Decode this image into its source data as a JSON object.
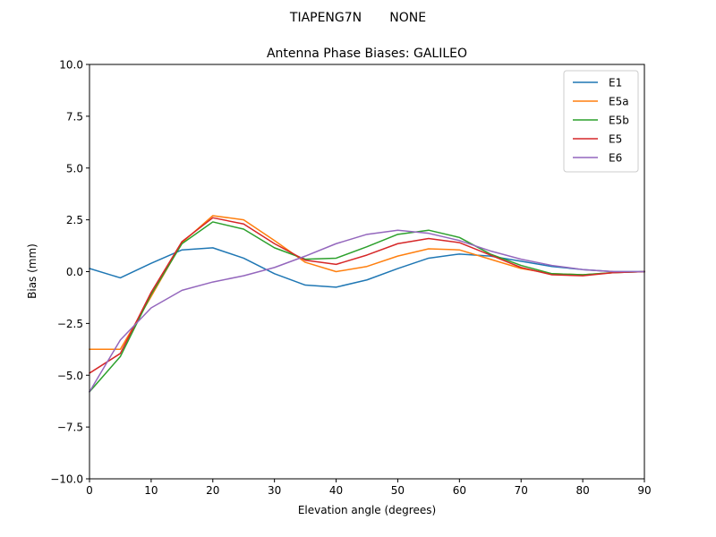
{
  "chart_data": {
    "type": "line",
    "suptitle": "TIAPENG7N       NONE",
    "title": "Antenna Phase Biases: GALILEO",
    "xlabel": "Elevation angle (degrees)",
    "ylabel": "Bias (mm)",
    "xlim": [
      0,
      90
    ],
    "ylim": [
      -10,
      10
    ],
    "xticks": [
      0,
      10,
      20,
      30,
      40,
      50,
      60,
      70,
      80,
      90
    ],
    "yticks": [
      -10.0,
      -7.5,
      -5.0,
      -2.5,
      0.0,
      2.5,
      5.0,
      7.5,
      10.0
    ],
    "grid": false,
    "legend_position": "top-right",
    "x": [
      0,
      5,
      10,
      15,
      20,
      25,
      30,
      35,
      40,
      45,
      50,
      55,
      60,
      65,
      70,
      75,
      80,
      85,
      90
    ],
    "series": [
      {
        "name": "E1",
        "color": "#1f77b4",
        "values": [
          0.15,
          -0.3,
          0.4,
          1.05,
          1.15,
          0.65,
          -0.1,
          -0.65,
          -0.75,
          -0.4,
          0.15,
          0.65,
          0.85,
          0.75,
          0.5,
          0.25,
          0.1,
          0.0,
          0.0
        ]
      },
      {
        "name": "E5a",
        "color": "#ff7f0e",
        "values": [
          -3.75,
          -3.75,
          -1.2,
          1.4,
          2.7,
          2.5,
          1.5,
          0.45,
          0.0,
          0.25,
          0.75,
          1.1,
          1.05,
          0.6,
          0.15,
          -0.1,
          -0.15,
          -0.05,
          0.0
        ]
      },
      {
        "name": "E5b",
        "color": "#2ca02c",
        "values": [
          -5.8,
          -4.1,
          -1.1,
          1.35,
          2.4,
          2.05,
          1.15,
          0.6,
          0.65,
          1.2,
          1.8,
          2.0,
          1.65,
          0.85,
          0.3,
          -0.1,
          -0.15,
          -0.05,
          0.0
        ]
      },
      {
        "name": "E5",
        "color": "#d62728",
        "values": [
          -4.9,
          -3.95,
          -1.0,
          1.45,
          2.6,
          2.3,
          1.35,
          0.55,
          0.35,
          0.8,
          1.35,
          1.6,
          1.4,
          0.8,
          0.2,
          -0.15,
          -0.2,
          -0.05,
          0.0
        ]
      },
      {
        "name": "E6",
        "color": "#9467bd",
        "values": [
          -5.8,
          -3.3,
          -1.75,
          -0.9,
          -0.5,
          -0.2,
          0.2,
          0.75,
          1.35,
          1.8,
          2.0,
          1.85,
          1.5,
          1.0,
          0.6,
          0.3,
          0.1,
          0.0,
          0.0
        ]
      }
    ]
  }
}
